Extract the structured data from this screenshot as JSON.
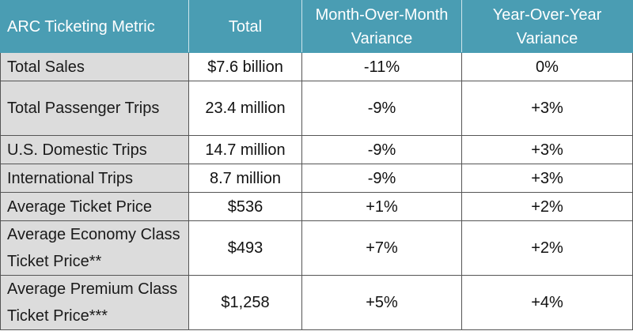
{
  "table": {
    "headers": [
      "ARC Ticketing Metric",
      "Total",
      "Month-Over-Month Variance",
      "Year-Over-Year Variance"
    ],
    "rows": [
      {
        "metric": "Total Sales",
        "total": "$7.6 billion",
        "mom": "-11%",
        "yoy": "0%"
      },
      {
        "metric": "Total Passenger Trips",
        "total": "23.4 million",
        "mom": "-9%",
        "yoy": "+3%"
      },
      {
        "metric": "U.S. Domestic Trips",
        "total": "14.7 million",
        "mom": "-9%",
        "yoy": "+3%"
      },
      {
        "metric": "International Trips",
        "total": "8.7 million",
        "mom": "-9%",
        "yoy": "+3%"
      },
      {
        "metric": "Average Ticket Price",
        "total": "$536",
        "mom": "+1%",
        "yoy": "+2%"
      },
      {
        "metric": "Average Economy Class Ticket Price**",
        "total": "$493",
        "mom": "+7%",
        "yoy": "+2%"
      },
      {
        "metric": "Average Premium Class Ticket Price***",
        "total": "$1,258",
        "mom": "+5%",
        "yoy": "+4%"
      }
    ]
  }
}
